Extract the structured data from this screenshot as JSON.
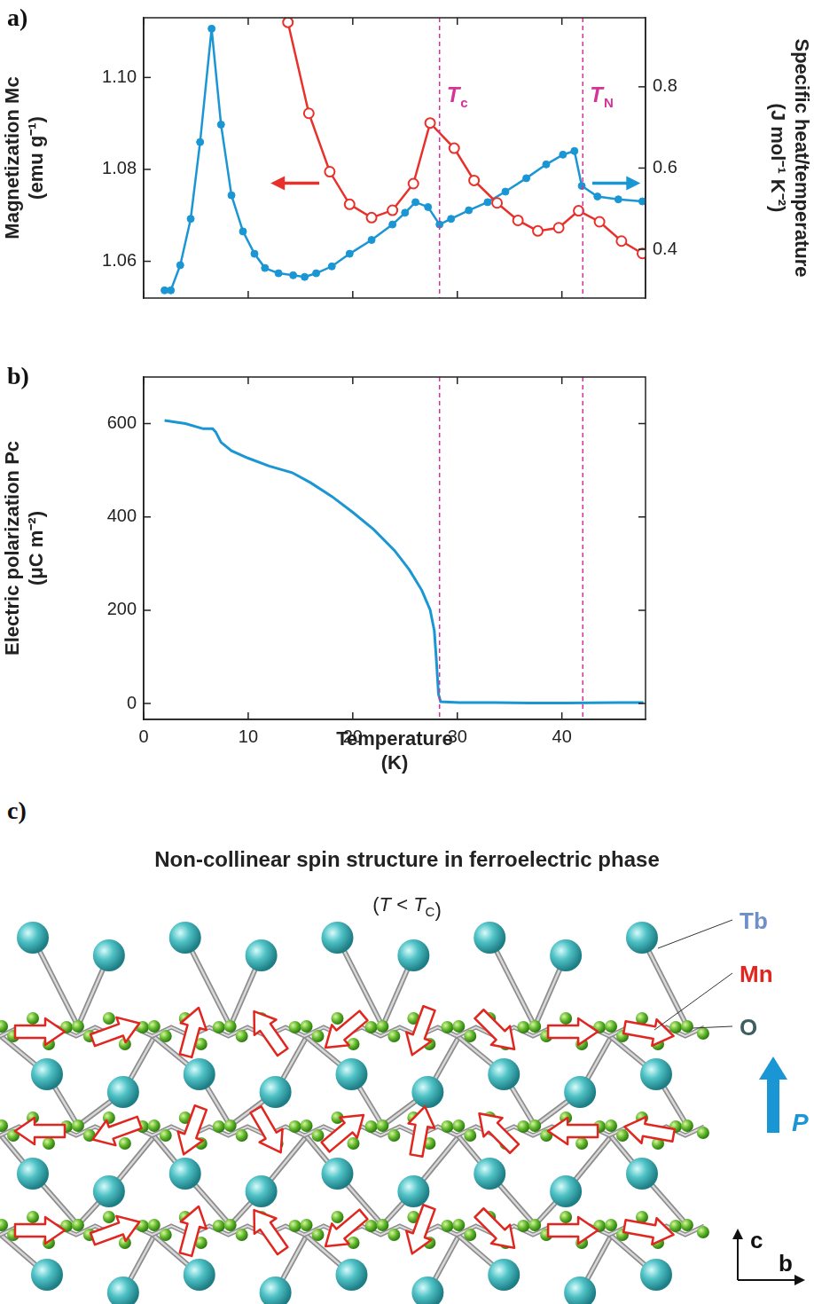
{
  "chart_data": [
    {
      "type": "line",
      "panel": "a)",
      "xlim": [
        0,
        48
      ],
      "xticks": [
        0,
        10,
        20,
        30,
        40
      ],
      "tick_labels": "y",
      "y_label": "Magnetization Mc (emu g⁻¹)",
      "ylim": [
        1.052,
        1.113
      ],
      "yticks": [
        1.06,
        1.08,
        {
          "value": 1.1,
          "label": "1.10"
        }
      ],
      "y2_label": "Specific heat/temperature (J mol⁻¹ K⁻²)",
      "y2lim": [
        0.28,
        0.97
      ],
      "y2ticks": [
        0.4,
        0.6,
        0.8
      ],
      "grid": false,
      "annotations": [
        {
          "x": 28.3,
          "label": "Tc"
        },
        {
          "x": 42.0,
          "label": "TN"
        }
      ],
      "series": [
        {
          "axis": "y",
          "color": "#e8312a",
          "marker": "open_circle",
          "x": [
            13.8,
            15.8,
            17.8,
            19.7,
            21.8,
            23.8,
            25.8,
            27.4,
            29.7,
            31.6,
            33.8,
            35.8,
            37.7,
            39.7,
            41.6,
            43.6,
            45.7,
            47.7
          ],
          "values": [
            1.112,
            1.0922,
            1.0795,
            1.0724,
            1.0695,
            1.0711,
            1.0769,
            1.0901,
            1.0846,
            1.0776,
            1.0727,
            1.0689,
            1.0666,
            1.0673,
            1.071,
            1.0686,
            1.0644,
            1.0617
          ]
        },
        {
          "axis": "y2",
          "color": "#1b96d4",
          "marker": "filled_circle",
          "x": [
            2.0,
            2.6,
            3.5,
            4.5,
            5.4,
            6.5,
            7.4,
            8.4,
            9.5,
            10.6,
            11.6,
            12.9,
            14.3,
            15.4,
            16.5,
            18.0,
            19.7,
            21.8,
            23.8,
            25.0,
            26.0,
            27.2,
            28.3,
            29.4,
            31.1,
            32.9,
            34.6,
            36.6,
            38.5,
            40.1,
            41.2,
            41.9,
            43.4,
            45.4,
            47.7
          ],
          "values": [
            0.299,
            0.299,
            0.361,
            0.475,
            0.664,
            0.943,
            0.707,
            0.533,
            0.444,
            0.389,
            0.354,
            0.341,
            0.336,
            0.332,
            0.341,
            0.358,
            0.389,
            0.423,
            0.461,
            0.49,
            0.516,
            0.504,
            0.461,
            0.475,
            0.496,
            0.516,
            0.542,
            0.575,
            0.609,
            0.633,
            0.642,
            0.556,
            0.53,
            0.523,
            0.518
          ]
        }
      ]
    },
    {
      "type": "line",
      "panel": "b)",
      "x_label": "Temperature (K)",
      "xlim": [
        0,
        48
      ],
      "xticks": [
        0,
        10,
        20,
        30,
        40
      ],
      "y_label": "Electric polarization Pc (μC m⁻²)",
      "ylim": [
        -34,
        700
      ],
      "yticks": [
        0,
        200,
        400,
        600
      ],
      "grid": false,
      "vlines": [
        28.3,
        42.0
      ],
      "series": [
        {
          "axis": "y",
          "color": "#1b96d4",
          "marker": "none",
          "x": [
            2.0,
            4.0,
            5.7,
            6.6,
            6.9,
            7.4,
            8.4,
            10.0,
            12.0,
            14.2,
            16.0,
            18.0,
            20.0,
            22.0,
            24.0,
            25.4,
            26.6,
            27.4,
            27.8,
            28.0,
            28.2,
            28.4,
            30.2,
            33.6,
            37.0,
            40.3,
            45.4,
            47.8
          ],
          "values": [
            607,
            600,
            589,
            589,
            582,
            560,
            542,
            526,
            509,
            495,
            473,
            444,
            410,
            373,
            328,
            287,
            243,
            201,
            156,
            92,
            20,
            4,
            2,
            2,
            1,
            1,
            2,
            2
          ]
        }
      ]
    }
  ],
  "diagram": {
    "panel": "c)",
    "title": "Non-collinear spin structure in ferroelectric phase",
    "subtitle": "(T < TC)",
    "atom_labels": [
      "Tb",
      "Mn",
      "O"
    ],
    "polarization_label": "P",
    "axes": {
      "vertical": "c",
      "horizontal": "b"
    },
    "spin_angles_deg": [
      [
        0,
        20,
        75,
        125,
        220,
        250,
        315,
        0,
        350
      ],
      [
        180,
        200,
        250,
        300,
        40,
        80,
        135,
        180,
        170
      ],
      [
        0,
        20,
        75,
        125,
        220,
        250,
        315,
        0,
        350
      ]
    ]
  }
}
